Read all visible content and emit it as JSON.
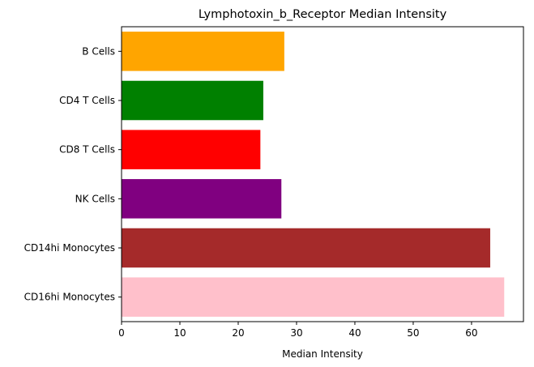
{
  "chart_data": {
    "type": "bar",
    "orientation": "horizontal",
    "title": "Lymphotoxin_b_Receptor Median Intensity",
    "xlabel": "Median Intensity",
    "ylabel": "",
    "categories": [
      "B Cells",
      "CD4 T Cells",
      "CD8 T Cells",
      "NK Cells",
      "CD14hi Monocytes",
      "CD16hi Monocytes"
    ],
    "values": [
      27.9,
      24.3,
      23.8,
      27.4,
      63.2,
      65.6
    ],
    "colors": [
      "#ffa500",
      "#008000",
      "#ff0000",
      "#800080",
      "#a52a2a",
      "#ffc0cb"
    ],
    "xlim": [
      0,
      68.9
    ],
    "xticks": [
      0,
      10,
      20,
      30,
      40,
      50,
      60
    ],
    "grid": false
  }
}
